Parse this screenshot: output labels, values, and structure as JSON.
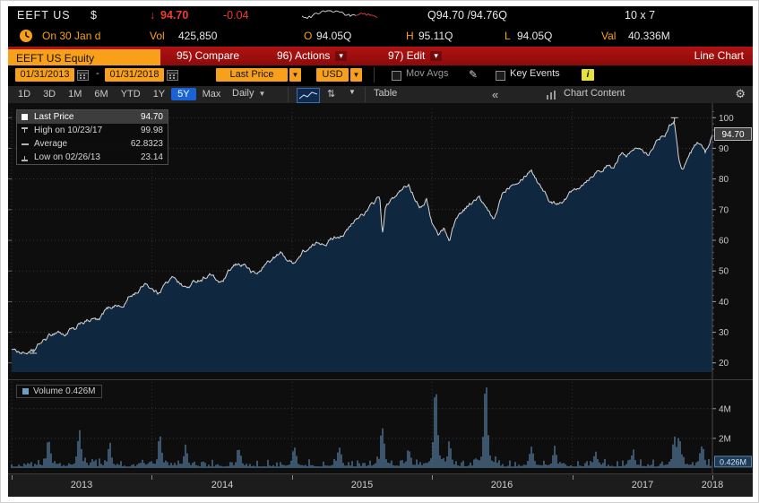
{
  "icons": {
    "gear": "⚙",
    "pencil": "✎",
    "arrows": "⇅",
    "caret": "▾",
    "caret_sm": "▼"
  },
  "top": {
    "ticker": "EEFT US",
    "currency": "$",
    "arrow": "↓",
    "last": "94.70",
    "change": "-0.04",
    "bid_ask": "Q94.70 /94.76Q",
    "lot": "10 x 7"
  },
  "quote": {
    "session": "On 30 Jan d",
    "vol_label": "Vol",
    "vol": "425,850",
    "open_label": "O",
    "open": "94.05Q",
    "high_label": "H",
    "high": "95.11Q",
    "low_label": "L",
    "low": "94.05Q",
    "val_label": "Val",
    "val": "40.336M"
  },
  "menu": {
    "security": "EEFT US Equity",
    "compare": "95) Compare",
    "actions": "96) Actions",
    "edit": "97) Edit",
    "right": "Line Chart"
  },
  "toolbar": {
    "date_from": "01/31/2013",
    "dash": "-",
    "date_to": "01/31/2018",
    "price_type": "Last Price",
    "currency": "USD",
    "mov_avgs": "Mov Avgs",
    "key_events": "Key Events",
    "info": "i"
  },
  "periods": {
    "items": [
      "1D",
      "3D",
      "1M",
      "6M",
      "YTD",
      "1Y",
      "5Y",
      "Max"
    ],
    "selected": "5Y",
    "frequency": "Daily",
    "table": "Table",
    "collapse": "«",
    "chart_content": "Chart Content"
  },
  "legend": {
    "rows": [
      {
        "label": "Last Price",
        "value": "94.70"
      },
      {
        "label": "High on 10/23/17",
        "value": "99.98"
      },
      {
        "label": "Average",
        "value": "62.8323"
      },
      {
        "label": "Low on 02/26/13",
        "value": "23.14"
      }
    ]
  },
  "volume_panel": {
    "legend": "Volume 0.426M",
    "tag": "0.426M"
  },
  "axes": {
    "price_ticks": [
      100,
      90,
      80,
      70,
      60,
      50,
      40,
      30,
      20
    ],
    "price_tag": "94.70",
    "volume_ticks": [
      {
        "label": "4M",
        "value": 4
      },
      {
        "label": "2M",
        "value": 2
      }
    ],
    "years": [
      "2013",
      "2014",
      "2015",
      "2016",
      "2017",
      "2018"
    ]
  },
  "chart_data": [
    {
      "type": "line",
      "name": "Last Price",
      "title": "EEFT US Equity 5Y Daily Line Chart",
      "x_unit": "months since 2013-01-31",
      "x_range": [
        0,
        60
      ],
      "ylim": [
        17,
        103
      ],
      "last": 94.7,
      "average": 62.8323,
      "high": {
        "date": "10/23/17",
        "value": 99.98,
        "t": 56.75
      },
      "low": {
        "date": "02/26/13",
        "value": 23.14,
        "t": 1.85
      },
      "points": [
        [
          0,
          24.5
        ],
        [
          1,
          23.6
        ],
        [
          1.85,
          23.14
        ],
        [
          2.5,
          26
        ],
        [
          3,
          27.5
        ],
        [
          4,
          30.5
        ],
        [
          4.5,
          29
        ],
        [
          5,
          31
        ],
        [
          5.5,
          30
        ],
        [
          6,
          32.5
        ],
        [
          7,
          34
        ],
        [
          7.5,
          33
        ],
        [
          8,
          36
        ],
        [
          9,
          39
        ],
        [
          9.5,
          38
        ],
        [
          10,
          41
        ],
        [
          11,
          44
        ],
        [
          11.5,
          46.5
        ],
        [
          12,
          44.5
        ],
        [
          12.5,
          43
        ],
        [
          13,
          46
        ],
        [
          14,
          48
        ],
        [
          14.5,
          46
        ],
        [
          15,
          44.5
        ],
        [
          16,
          47
        ],
        [
          17,
          49.5
        ],
        [
          17.5,
          47
        ],
        [
          18,
          46
        ],
        [
          19,
          50.5
        ],
        [
          20,
          52
        ],
        [
          20.5,
          49.5
        ],
        [
          21,
          48.5
        ],
        [
          22,
          53
        ],
        [
          23,
          55.5
        ],
        [
          24,
          52.5
        ],
        [
          25,
          56.5
        ],
        [
          26,
          58
        ],
        [
          27,
          60
        ],
        [
          28,
          62
        ],
        [
          29,
          64.5
        ],
        [
          30,
          68.5
        ],
        [
          31,
          71.5
        ],
        [
          31.5,
          74.5
        ],
        [
          31.75,
          61.5
        ],
        [
          32,
          70
        ],
        [
          33,
          74.5
        ],
        [
          34,
          77.5
        ],
        [
          34.5,
          74
        ],
        [
          35,
          72
        ],
        [
          35.5,
          74.5
        ],
        [
          36,
          66.5
        ],
        [
          36.5,
          62
        ],
        [
          37,
          64
        ],
        [
          37.5,
          60.5
        ],
        [
          38,
          67
        ],
        [
          39,
          71.5
        ],
        [
          40,
          74
        ],
        [
          40.6,
          70
        ],
        [
          41,
          67.5
        ],
        [
          41.3,
          65.5
        ],
        [
          42,
          75
        ],
        [
          43,
          80
        ],
        [
          44,
          83
        ],
        [
          44.5,
          84.5
        ],
        [
          45,
          80.5
        ],
        [
          45.5,
          78
        ],
        [
          46,
          74
        ],
        [
          46.5,
          72.5
        ],
        [
          47,
          73.5
        ],
        [
          48,
          76.5
        ],
        [
          49,
          80
        ],
        [
          50,
          83.5
        ],
        [
          51,
          85
        ],
        [
          51.5,
          83
        ],
        [
          52,
          87
        ],
        [
          53,
          88.5
        ],
        [
          54,
          91
        ],
        [
          54.5,
          89.5
        ],
        [
          55,
          93
        ],
        [
          56,
          96.5
        ],
        [
          56.75,
          99.98
        ],
        [
          57.1,
          88
        ],
        [
          57.4,
          84.5
        ],
        [
          58,
          88.5
        ],
        [
          58.5,
          91
        ],
        [
          59,
          92.5
        ],
        [
          59.4,
          89
        ],
        [
          59.7,
          91.5
        ],
        [
          60,
          94.7
        ]
      ]
    },
    {
      "type": "bar",
      "name": "Volume",
      "unit": "millions of shares",
      "ylim": [
        0,
        5.8
      ],
      "last": 0.426,
      "spikes": [
        [
          3.2,
          1.5
        ],
        [
          5.8,
          2.1
        ],
        [
          8.4,
          1.2
        ],
        [
          12.7,
          1.8
        ],
        [
          14.9,
          1.1
        ],
        [
          19.5,
          1.0
        ],
        [
          24.2,
          1.2
        ],
        [
          28,
          0.9
        ],
        [
          31.75,
          2.3
        ],
        [
          34,
          1.0
        ],
        [
          36.3,
          4.7
        ],
        [
          37.5,
          1.3
        ],
        [
          40.6,
          5.1
        ],
        [
          44.5,
          1.2
        ],
        [
          46.5,
          1.0
        ],
        [
          50,
          0.9
        ],
        [
          53.2,
          0.8
        ],
        [
          56.75,
          1.7
        ],
        [
          57.2,
          1.4
        ],
        [
          59.1,
          1.0
        ]
      ]
    }
  ]
}
